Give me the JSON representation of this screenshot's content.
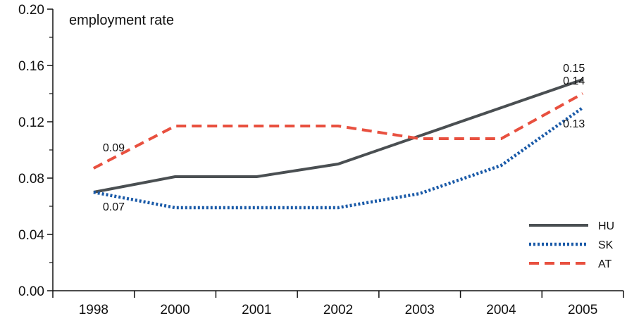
{
  "chart_data": {
    "type": "line",
    "title": "employment rate",
    "categories": [
      "1998",
      "2000",
      "2001",
      "2002",
      "2003",
      "2004",
      "2005"
    ],
    "ylim": [
      0,
      0.2
    ],
    "yticks": [
      "0.00",
      "0.04",
      "0.08",
      "0.12",
      "0.16",
      "0.20"
    ],
    "grid": false,
    "legend_position": "bottom-right",
    "series": [
      {
        "name": "HU",
        "values": [
          0.07,
          0.081,
          0.081,
          0.09,
          0.11,
          0.13,
          0.15
        ],
        "color": "#4a4f52",
        "style": "solid"
      },
      {
        "name": "SK",
        "values": [
          0.07,
          0.059,
          0.059,
          0.059,
          0.069,
          0.089,
          0.13
        ],
        "color": "#1a5aa8",
        "style": "dotted"
      },
      {
        "name": "AT",
        "values": [
          0.087,
          0.117,
          0.117,
          0.117,
          0.108,
          0.108,
          0.14
        ],
        "color": "#e8503f",
        "style": "dashed"
      }
    ],
    "annotations": [
      {
        "text": "0.09",
        "series": "AT",
        "index": 0
      },
      {
        "text": "0.07",
        "series": "SK",
        "index": 0
      },
      {
        "text": "0.15",
        "series": "HU",
        "index": 6
      },
      {
        "text": "0.14",
        "series": "AT",
        "index": 6
      },
      {
        "text": "0.13",
        "series": "SK",
        "index": 6
      }
    ]
  }
}
